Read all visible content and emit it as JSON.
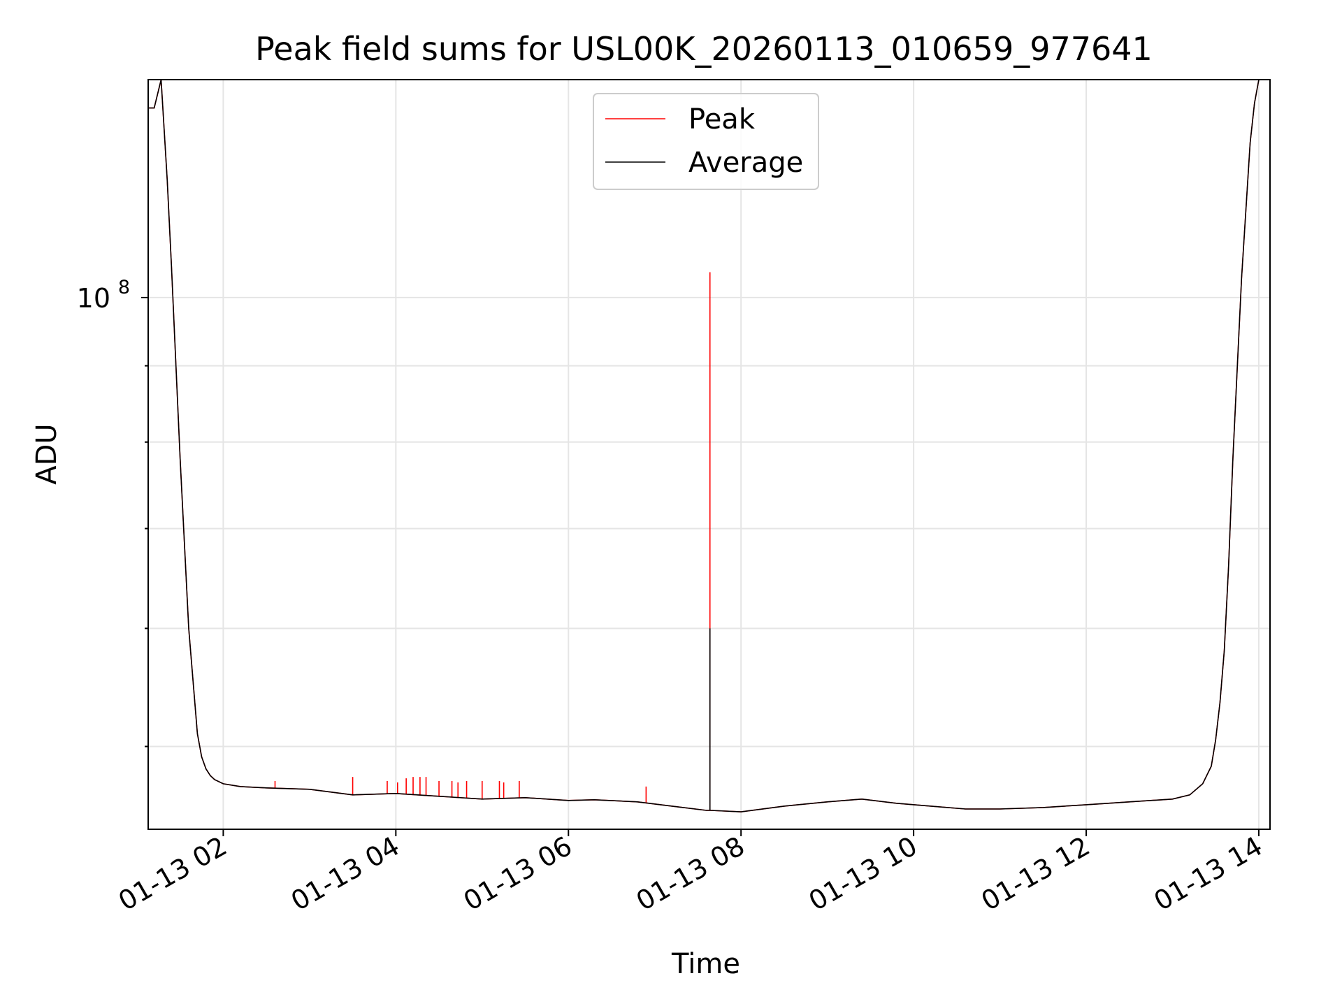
{
  "chart_data": {
    "type": "line",
    "title": "Peak field sums for USL00K_20260113_010659_977641",
    "xlabel": "Time",
    "ylabel": "ADU",
    "x_unit": "hours since 01-13 00:00",
    "xlim": [
      1.13,
      14.13
    ],
    "ylim": [
      44000000,
      140000000
    ],
    "yscale": "log",
    "grid": true,
    "legend_position": "top-center",
    "x_ticks": [
      {
        "value": 2,
        "label": "01-13 02"
      },
      {
        "value": 4,
        "label": "01-13 04"
      },
      {
        "value": 6,
        "label": "01-13 06"
      },
      {
        "value": 8,
        "label": "01-13 08"
      },
      {
        "value": 10,
        "label": "01-13 10"
      },
      {
        "value": 12,
        "label": "01-13 12"
      },
      {
        "value": 14,
        "label": "01-13 14"
      }
    ],
    "y_major_ticks": [
      {
        "value": 100000000,
        "base": "10",
        "exponent": "8"
      }
    ],
    "y_minor_ticks": [
      50000000,
      60000000,
      70000000,
      80000000,
      90000000,
      200000000
    ],
    "series": [
      {
        "name": "Peak",
        "color": "#ff0000"
      },
      {
        "name": "Average",
        "color": "#000000"
      }
    ],
    "average_curve": {
      "x": [
        1.13,
        1.2,
        1.28,
        1.35,
        1.4,
        1.5,
        1.6,
        1.7,
        1.75,
        1.8,
        1.85,
        1.9,
        2.0,
        2.2,
        2.5,
        3.0,
        3.5,
        4.0,
        4.5,
        5.0,
        5.5,
        6.0,
        6.3,
        6.8,
        7.2,
        7.6,
        7.65,
        8.0,
        8.5,
        9.0,
        9.4,
        9.8,
        10.2,
        10.6,
        11.0,
        11.5,
        12.0,
        12.5,
        13.0,
        13.2,
        13.35,
        13.45,
        13.5,
        13.55,
        13.6,
        13.65,
        13.7,
        13.8,
        13.9,
        13.95,
        14.0,
        14.05,
        14.13
      ],
      "y": [
        134000000,
        134000000,
        140000000,
        120000000,
        105000000,
        78000000,
        60000000,
        51000000,
        49200000,
        48300000,
        47800000,
        47500000,
        47200000,
        47000000,
        46900000,
        46800000,
        46400000,
        46500000,
        46300000,
        46100000,
        46200000,
        46000000,
        46050000,
        45900000,
        45600000,
        45300000,
        45300000,
        45200000,
        45600000,
        45900000,
        46100000,
        45800000,
        45600000,
        45400000,
        45400000,
        45500000,
        45700000,
        45900000,
        46100000,
        46400000,
        47200000,
        48500000,
        50500000,
        53500000,
        58000000,
        66000000,
        78000000,
        103000000,
        127000000,
        135000000,
        140000000,
        140000000,
        140000000
      ]
    },
    "peak_spikes": [
      {
        "x": 2.6,
        "y": 47400000
      },
      {
        "x": 3.5,
        "y": 47700000
      },
      {
        "x": 3.9,
        "y": 47400000
      },
      {
        "x": 4.02,
        "y": 47300000
      },
      {
        "x": 4.12,
        "y": 47600000
      },
      {
        "x": 4.2,
        "y": 47700000
      },
      {
        "x": 4.28,
        "y": 47700000
      },
      {
        "x": 4.35,
        "y": 47700000
      },
      {
        "x": 4.5,
        "y": 47400000
      },
      {
        "x": 4.65,
        "y": 47400000
      },
      {
        "x": 4.72,
        "y": 47300000
      },
      {
        "x": 4.82,
        "y": 47400000
      },
      {
        "x": 5.0,
        "y": 47400000
      },
      {
        "x": 5.2,
        "y": 47400000
      },
      {
        "x": 5.25,
        "y": 47300000
      },
      {
        "x": 5.43,
        "y": 47400000
      },
      {
        "x": 6.9,
        "y": 47000000
      },
      {
        "x": 7.64,
        "y": 104000000
      }
    ],
    "average_spike": {
      "x": 7.64,
      "y": 60000000
    }
  }
}
